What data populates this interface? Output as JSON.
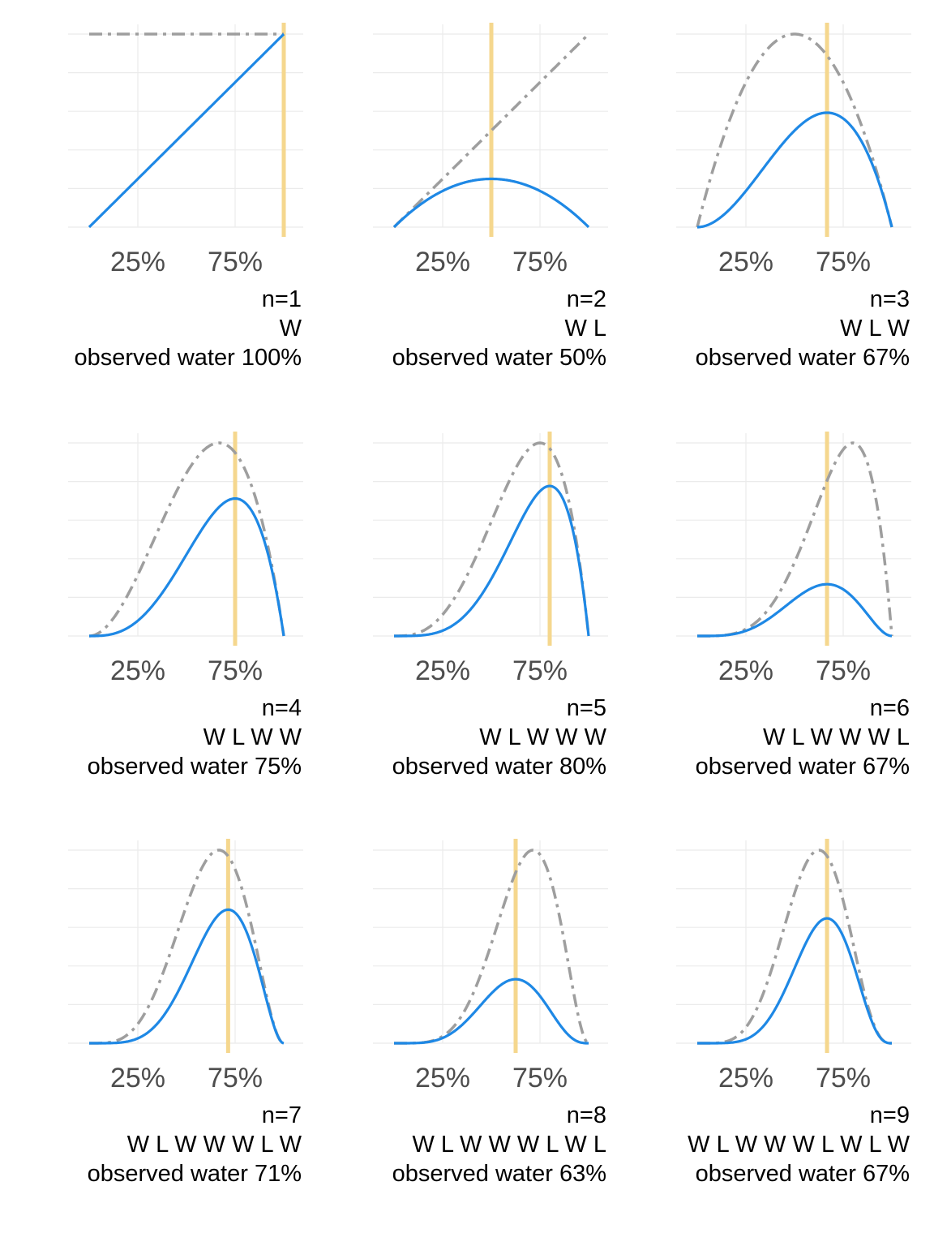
{
  "colors": {
    "posterior": "#1E88E5",
    "prior": "#9E9E9E",
    "observed_proportion_line": "#F5D78E",
    "gridline": "#EBEBEB",
    "tick_label": "#4D4D4D"
  },
  "chart_data": [
    {
      "type": "line",
      "panel_index": 1,
      "xlim": [
        0,
        1
      ],
      "x_ticks": [
        0.25,
        0.75
      ],
      "x_tick_labels": [
        "25%",
        "75%"
      ],
      "n_label": "n=1",
      "sequence": "W",
      "observed_label": "observed water 100%",
      "observed_proportion": 1.0,
      "prior": {
        "alpha": 1,
        "beta": 1
      },
      "posterior": {
        "alpha": 2,
        "beta": 1
      }
    },
    {
      "type": "line",
      "panel_index": 2,
      "xlim": [
        0,
        1
      ],
      "x_ticks": [
        0.25,
        0.75
      ],
      "x_tick_labels": [
        "25%",
        "75%"
      ],
      "n_label": "n=2",
      "sequence": "W L",
      "observed_label": "observed water 50%",
      "observed_proportion": 0.5,
      "prior": {
        "alpha": 2,
        "beta": 1
      },
      "posterior": {
        "alpha": 2,
        "beta": 2
      }
    },
    {
      "type": "line",
      "panel_index": 3,
      "xlim": [
        0,
        1
      ],
      "x_ticks": [
        0.25,
        0.75
      ],
      "x_tick_labels": [
        "25%",
        "75%"
      ],
      "n_label": "n=3",
      "sequence": "W L W",
      "observed_label": "observed water 67%",
      "observed_proportion": 0.667,
      "prior": {
        "alpha": 2,
        "beta": 2
      },
      "posterior": {
        "alpha": 3,
        "beta": 2
      }
    },
    {
      "type": "line",
      "panel_index": 4,
      "xlim": [
        0,
        1
      ],
      "x_ticks": [
        0.25,
        0.75
      ],
      "x_tick_labels": [
        "25%",
        "75%"
      ],
      "n_label": "n=4",
      "sequence": "W L W W",
      "observed_label": "observed water 75%",
      "observed_proportion": 0.75,
      "prior": {
        "alpha": 3,
        "beta": 2
      },
      "posterior": {
        "alpha": 4,
        "beta": 2
      }
    },
    {
      "type": "line",
      "panel_index": 5,
      "xlim": [
        0,
        1
      ],
      "x_ticks": [
        0.25,
        0.75
      ],
      "x_tick_labels": [
        "25%",
        "75%"
      ],
      "n_label": "n=5",
      "sequence": "W L W W W",
      "observed_label": "observed water 80%",
      "observed_proportion": 0.8,
      "prior": {
        "alpha": 4,
        "beta": 2
      },
      "posterior": {
        "alpha": 5,
        "beta": 2
      }
    },
    {
      "type": "line",
      "panel_index": 6,
      "xlim": [
        0,
        1
      ],
      "x_ticks": [
        0.25,
        0.75
      ],
      "x_tick_labels": [
        "25%",
        "75%"
      ],
      "n_label": "n=6",
      "sequence": "W L W W W L",
      "observed_label": "observed water 67%",
      "observed_proportion": 0.667,
      "prior": {
        "alpha": 5,
        "beta": 2
      },
      "posterior": {
        "alpha": 5,
        "beta": 3
      }
    },
    {
      "type": "line",
      "panel_index": 7,
      "xlim": [
        0,
        1
      ],
      "x_ticks": [
        0.25,
        0.75
      ],
      "x_tick_labels": [
        "25%",
        "75%"
      ],
      "n_label": "n=7",
      "sequence": "W L W W W L W",
      "observed_label": "observed water 71%",
      "observed_proportion": 0.714,
      "prior": {
        "alpha": 5,
        "beta": 3
      },
      "posterior": {
        "alpha": 6,
        "beta": 3
      }
    },
    {
      "type": "line",
      "panel_index": 8,
      "xlim": [
        0,
        1
      ],
      "x_ticks": [
        0.25,
        0.75
      ],
      "x_tick_labels": [
        "25%",
        "75%"
      ],
      "n_label": "n=8",
      "sequence": "W L W W W L W L",
      "observed_label": "observed water 63%",
      "observed_proportion": 0.625,
      "prior": {
        "alpha": 6,
        "beta": 3
      },
      "posterior": {
        "alpha": 6,
        "beta": 4
      }
    },
    {
      "type": "line",
      "panel_index": 9,
      "xlim": [
        0,
        1
      ],
      "x_ticks": [
        0.25,
        0.75
      ],
      "x_tick_labels": [
        "25%",
        "75%"
      ],
      "n_label": "n=9",
      "sequence": "W L W W W L W L W",
      "observed_label": "observed water 67%",
      "observed_proportion": 0.667,
      "prior": {
        "alpha": 6,
        "beta": 4
      },
      "posterior": {
        "alpha": 7,
        "beta": 4
      }
    }
  ]
}
